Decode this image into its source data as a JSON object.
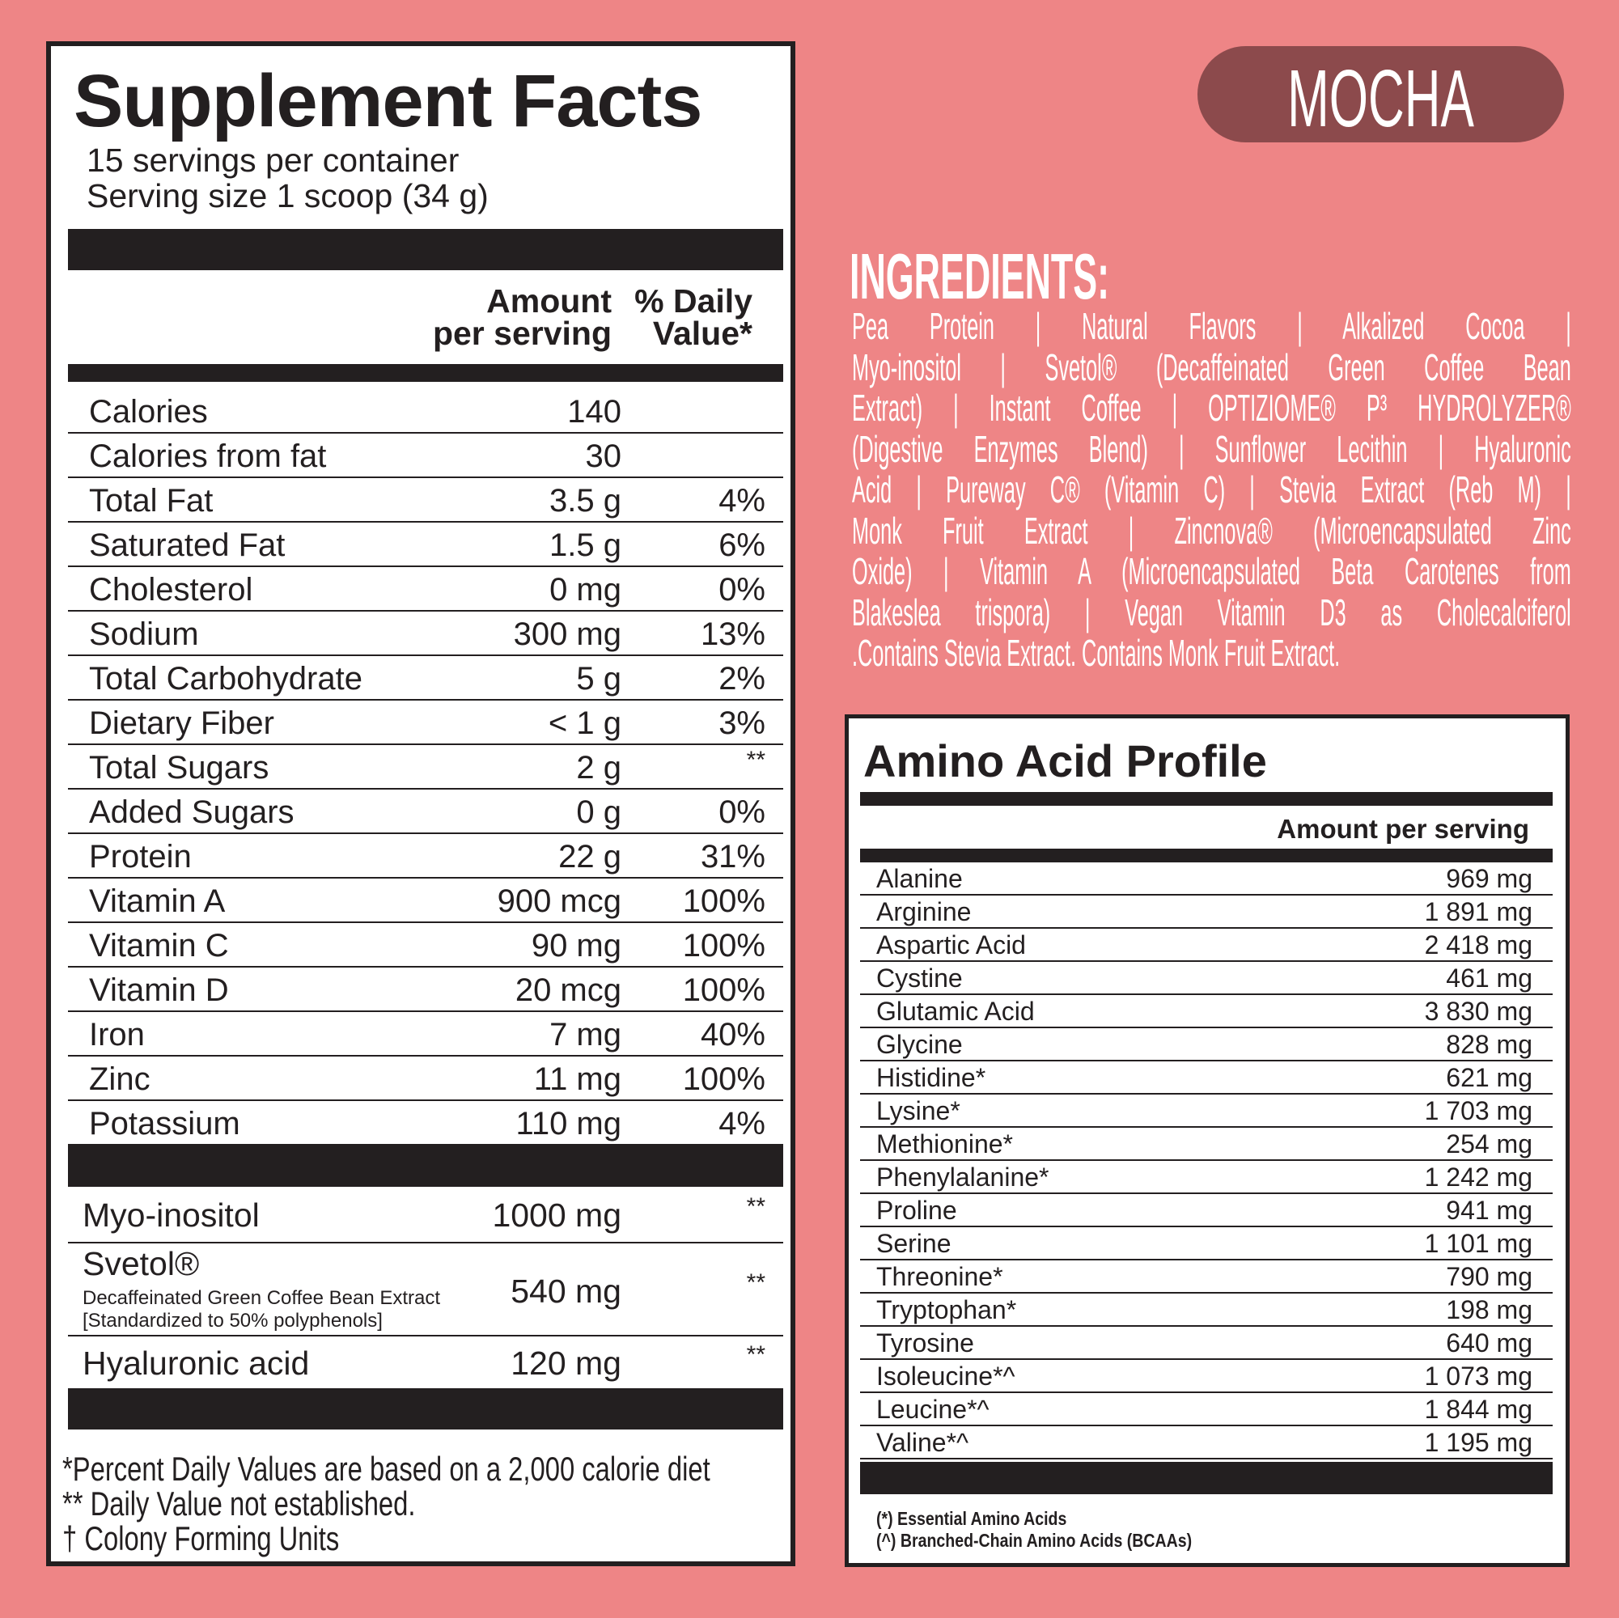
{
  "colors": {
    "background": "#ee8586",
    "flavor_pill": "#8c4a4c",
    "ink": "#231f20"
  },
  "facts": {
    "title": "Supplement Facts",
    "servings": "15 servings per container",
    "serving_size": "Serving size  1 scoop (34 g)",
    "col_amount_1": "Amount",
    "col_amount_2": "per serving",
    "col_dv_1": "% Daily",
    "col_dv_2": "Value*",
    "rows": [
      {
        "name": "Calories",
        "amount": "140",
        "dv": ""
      },
      {
        "name": "Calories from fat",
        "amount": "30",
        "dv": ""
      },
      {
        "name": "Total Fat",
        "amount": "3.5 g",
        "dv": "4%"
      },
      {
        "name": "Saturated Fat",
        "amount": "1.5 g",
        "dv": "6%"
      },
      {
        "name": "Cholesterol",
        "amount": "0 mg",
        "dv": "0%"
      },
      {
        "name": "Sodium",
        "amount": "300 mg",
        "dv": "13%"
      },
      {
        "name": "Total Carbohydrate",
        "amount": "5 g",
        "dv": "2%"
      },
      {
        "name": "Dietary Fiber",
        "amount": "< 1 g",
        "dv": "3%"
      },
      {
        "name": "Total Sugars",
        "amount": "2 g",
        "dv": "**"
      },
      {
        "name": "Added Sugars",
        "amount": "0 g",
        "dv": "0%"
      },
      {
        "name": "Protein",
        "amount": "22 g",
        "dv": "31%"
      },
      {
        "name": "Vitamin A",
        "amount": "900 mcg",
        "dv": "100%"
      },
      {
        "name": "Vitamin C",
        "amount": "90 mg",
        "dv": "100%"
      },
      {
        "name": "Vitamin D",
        "amount": "20 mcg",
        "dv": "100%"
      },
      {
        "name": "Iron",
        "amount": "7 mg",
        "dv": "40%"
      },
      {
        "name": "Zinc",
        "amount": "11 mg",
        "dv": "100%"
      },
      {
        "name": "Potassium",
        "amount": "110 mg",
        "dv": "4%"
      }
    ],
    "extras": {
      "myo": {
        "name": "Myo-inositol",
        "amount": "1000 mg",
        "dv": "**"
      },
      "svetol": {
        "name": "Svetol®",
        "sub1": "Decaffeinated Green Coffee Bean Extract",
        "sub2": "[Standardized to 50% polyphenols]",
        "amount": "540 mg",
        "dv": "**"
      },
      "hyaluronic": {
        "name": "Hyaluronic acid",
        "amount": "120 mg",
        "dv": "**"
      }
    },
    "footnotes": [
      "*Percent Daily Values are based on a 2,000 calorie diet",
      "** Daily Value not established.",
      "† Colony Forming Units"
    ]
  },
  "flavor": "MOCHA",
  "ingredients": {
    "title": "INGREDIENTS:",
    "lines": [
      "Pea Protein | Natural Flavors | Alkalized Cocoa |",
      "Myo-inositol | Svetol® (Decaffeinated Green Coffee Bean",
      "Extract) | Instant Coffee | OPTIZIOME® P³ HYDROLYZER®",
      "(Digestive Enzymes Blend) | Sunflower Lecithin | Hyaluronic",
      "Acid | Pureway C® (Vitamin C) | Stevia Extract (Reb M) |",
      "Monk Fruit Extract | Zincnova® (Microencapsulated Zinc",
      "Oxide) | Vitamin A (Microencapsulated Beta Carotenes from",
      "Blakeslea trispora) | Vegan Vitamin D3 as Cholecalciferol",
      ".Contains Stevia Extract. Contains Monk Fruit Extract."
    ]
  },
  "amino": {
    "title": "Amino Acid Profile",
    "col_header": "Amount per serving",
    "rows": [
      {
        "name": "Alanine",
        "amount": "969 mg"
      },
      {
        "name": "Arginine",
        "amount": "1 891 mg"
      },
      {
        "name": "Aspartic Acid",
        "amount": "2 418 mg"
      },
      {
        "name": "Cystine",
        "amount": "461 mg"
      },
      {
        "name": "Glutamic Acid",
        "amount": "3 830 mg"
      },
      {
        "name": "Glycine",
        "amount": "828 mg"
      },
      {
        "name": "Histidine*",
        "amount": "621 mg"
      },
      {
        "name": "Lysine*",
        "amount": "1 703 mg"
      },
      {
        "name": "Methionine*",
        "amount": "254 mg"
      },
      {
        "name": "Phenylalanine*",
        "amount": "1 242 mg"
      },
      {
        "name": "Proline",
        "amount": "941 mg"
      },
      {
        "name": "Serine",
        "amount": "1 101 mg"
      },
      {
        "name": "Threonine*",
        "amount": "790 mg"
      },
      {
        "name": "Tryptophan*",
        "amount": "198 mg"
      },
      {
        "name": "Tyrosine",
        "amount": "640 mg"
      },
      {
        "name": "Isoleucine*^",
        "amount": "1 073 mg"
      },
      {
        "name": "Leucine*^",
        "amount": "1 844 mg"
      },
      {
        "name": "Valine*^",
        "amount": "1 195 mg"
      }
    ],
    "footnotes": [
      "(*) Essential Amino Acids",
      "(^) Branched-Chain Amino Acids (BCAAs)"
    ]
  }
}
